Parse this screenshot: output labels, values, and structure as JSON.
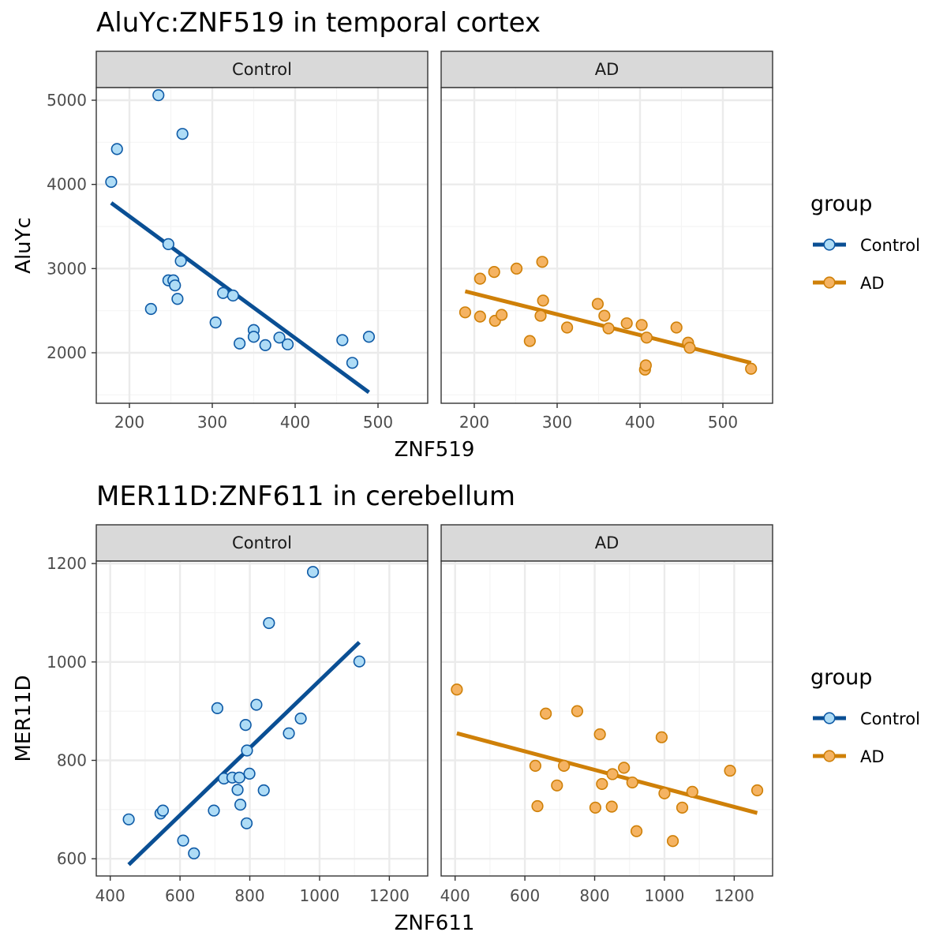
{
  "colors": {
    "control_line": "#0a4f94",
    "control_fill": "#aedcf6",
    "control_stroke": "#0e5aa6",
    "ad_line": "#cf8008",
    "ad_fill": "#f5b362",
    "ad_stroke": "#cf8008",
    "strip_fill": "#d9d9d9",
    "grid_major": "#ebebeb",
    "grid_minor": "#f4f4f4"
  },
  "legend": {
    "title": "group",
    "items": [
      {
        "label": "Control",
        "color_key": "control"
      },
      {
        "label": "AD",
        "color_key": "ad"
      }
    ]
  },
  "chart_data": [
    {
      "type": "scatter",
      "title": "AluYc:ZNF519 in temporal cortex",
      "xlabel": "ZNF519",
      "ylabel": "AluYc",
      "xlim": [
        160,
        560
      ],
      "ylim": [
        1400,
        5150
      ],
      "xticks": [
        200,
        300,
        400,
        500
      ],
      "yticks": [
        2000,
        3000,
        4000,
        5000
      ],
      "xminor": [
        250,
        350,
        450
      ],
      "yminor": [
        1500,
        2500,
        3500,
        4500
      ],
      "grid": true,
      "legend_position": "right",
      "panels": [
        {
          "name": "Control",
          "points": [
            [
              178,
              4030
            ],
            [
              185,
              4420
            ],
            [
              235,
              5060
            ],
            [
              264,
              4600
            ],
            [
              247,
              3290
            ],
            [
              262,
              3090
            ],
            [
              247,
              2860
            ],
            [
              253,
              2860
            ],
            [
              255,
              2800
            ],
            [
              258,
              2640
            ],
            [
              226,
              2520
            ],
            [
              304,
              2360
            ],
            [
              313,
              2710
            ],
            [
              325,
              2680
            ],
            [
              333,
              2110
            ],
            [
              350,
              2270
            ],
            [
              350,
              2190
            ],
            [
              364,
              2090
            ],
            [
              381,
              2180
            ],
            [
              391,
              2100
            ],
            [
              457,
              2150
            ],
            [
              469,
              1880
            ],
            [
              489,
              2190
            ]
          ],
          "fit": [
            [
              178,
              3780
            ],
            [
              489,
              1530
            ]
          ]
        },
        {
          "name": "AD",
          "points": [
            [
              189,
              2480
            ],
            [
              207,
              2880
            ],
            [
              207,
              2430
            ],
            [
              224,
              2960
            ],
            [
              225,
              2380
            ],
            [
              233,
              2450
            ],
            [
              251,
              3000
            ],
            [
              267,
              2140
            ],
            [
              280,
              2440
            ],
            [
              282,
              3080
            ],
            [
              283,
              2620
            ],
            [
              312,
              2300
            ],
            [
              349,
              2580
            ],
            [
              357,
              2440
            ],
            [
              362,
              2290
            ],
            [
              384,
              2350
            ],
            [
              402,
              2330
            ],
            [
              406,
              1800
            ],
            [
              407,
              1850
            ],
            [
              408,
              2180
            ],
            [
              444,
              2300
            ],
            [
              458,
              2120
            ],
            [
              460,
              2060
            ],
            [
              534,
              1810
            ]
          ],
          "fit": [
            [
              189,
              2730
            ],
            [
              534,
              1880
            ]
          ]
        }
      ]
    },
    {
      "type": "scatter",
      "title": "MER11D:ZNF611 in cerebellum",
      "xlabel": "ZNF611",
      "ylabel": "MER11D",
      "xlim": [
        360,
        1310
      ],
      "ylim": [
        565,
        1205
      ],
      "xticks": [
        400,
        600,
        800,
        1000,
        1200
      ],
      "yticks": [
        600,
        800,
        1000,
        1200
      ],
      "xminor": [
        500,
        700,
        900,
        1100
      ],
      "yminor": [
        700,
        900,
        1100
      ],
      "grid": true,
      "legend_position": "right",
      "panels": [
        {
          "name": "Control",
          "points": [
            [
              453,
              680
            ],
            [
              544,
              692
            ],
            [
              551,
              698
            ],
            [
              609,
              637
            ],
            [
              640,
              611
            ],
            [
              697,
              698
            ],
            [
              707,
              906
            ],
            [
              726,
              763
            ],
            [
              750,
              765
            ],
            [
              765,
              740
            ],
            [
              770,
              765
            ],
            [
              773,
              710
            ],
            [
              788,
              872
            ],
            [
              791,
              672
            ],
            [
              792,
              820
            ],
            [
              799,
              773
            ],
            [
              819,
              913
            ],
            [
              840,
              739
            ],
            [
              855,
              1079
            ],
            [
              912,
              855
            ],
            [
              946,
              885
            ],
            [
              981,
              1183
            ],
            [
              1114,
              1001
            ]
          ],
          "fit": [
            [
              453,
              588
            ],
            [
              1114,
              1040
            ]
          ]
        },
        {
          "name": "AD",
          "points": [
            [
              405,
              944
            ],
            [
              630,
              789
            ],
            [
              636,
              707
            ],
            [
              660,
              895
            ],
            [
              692,
              749
            ],
            [
              712,
              789
            ],
            [
              750,
              900
            ],
            [
              802,
              704
            ],
            [
              815,
              853
            ],
            [
              821,
              752
            ],
            [
              849,
              706
            ],
            [
              851,
              772
            ],
            [
              884,
              785
            ],
            [
              908,
              755
            ],
            [
              920,
              656
            ],
            [
              992,
              847
            ],
            [
              1000,
              733
            ],
            [
              1024,
              636
            ],
            [
              1051,
              704
            ],
            [
              1080,
              736
            ],
            [
              1188,
              779
            ],
            [
              1266,
              739
            ]
          ],
          "fit": [
            [
              405,
              855
            ],
            [
              1266,
              693
            ]
          ]
        }
      ]
    }
  ]
}
